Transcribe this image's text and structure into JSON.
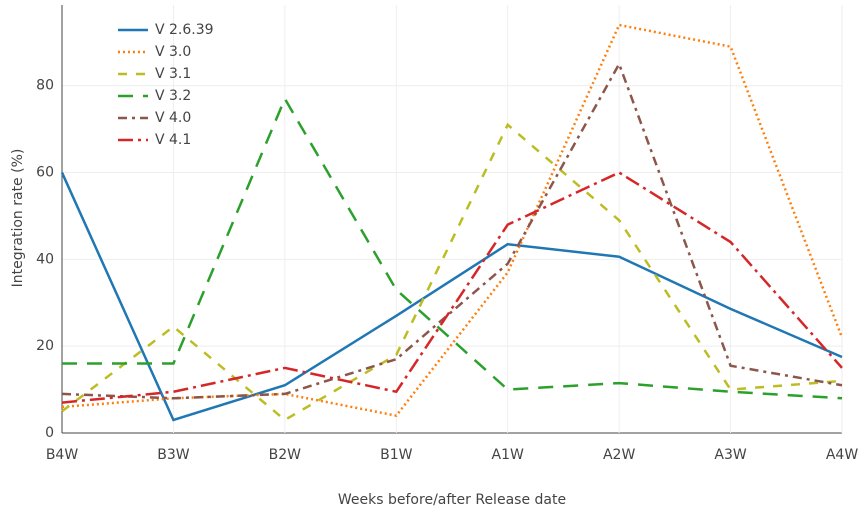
{
  "chart_data": {
    "type": "line",
    "x_label": "Weeks before/after Release date",
    "y_label": "Integration rate (%)",
    "categories": [
      "B4W",
      "B3W",
      "B2W",
      "B1W",
      "A1W",
      "A2W",
      "A3W",
      "A4W"
    ],
    "series": [
      {
        "name": "V 2.6.39",
        "color": "#1f77b4",
        "dash": "solid",
        "values": [
          60,
          3,
          11,
          27,
          43.5,
          40.6,
          28.6,
          17.5
        ]
      },
      {
        "name": "V 3.0",
        "color": "#ff7f0e",
        "dash": "dot",
        "values": [
          6,
          8,
          9,
          4,
          37,
          94,
          89,
          22
        ]
      },
      {
        "name": "V 3.1",
        "color": "#bcbd22",
        "dash": "dash",
        "values": [
          5,
          24.5,
          3,
          18,
          71,
          49,
          10,
          12
        ]
      },
      {
        "name": "V 3.2",
        "color": "#2ca02c",
        "dash": "longdash",
        "values": [
          16,
          16,
          77,
          33,
          10,
          11.5,
          9.5,
          8
        ]
      },
      {
        "name": "V 4.0",
        "color": "#8c564b",
        "dash": "dashdot",
        "values": [
          9,
          8,
          9,
          17,
          39,
          85,
          15.5,
          11
        ]
      },
      {
        "name": "V 4.1",
        "color": "#d62728",
        "dash": "longdashdot",
        "values": [
          7,
          9.5,
          15,
          9.5,
          48,
          60,
          44,
          15
        ]
      }
    ],
    "ylim": [
      0,
      98.6
    ],
    "yticks": [
      0,
      20,
      40,
      60,
      80
    ],
    "grid": true,
    "legend": "top-left"
  }
}
